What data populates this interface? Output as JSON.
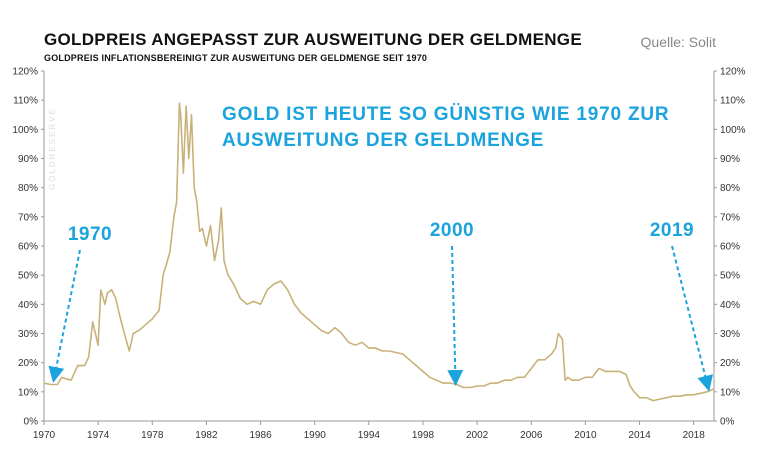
{
  "header": {
    "title": "GOLDPREIS ANGEPASST ZUR AUSWEITUNG DER GELDMENGE",
    "subtitle": "GOLDPREIS INFLATIONSBEREINIGT ZUR AUSWEITUNG DER GELDMENGE SEIT 1970",
    "source": "Quelle: Solit"
  },
  "headline": {
    "line1": "GOLD IST HEUTE SO GÜNSTIG WIE 1970 ZUR",
    "line2": "AUSWEITUNG DER GELDMENGE"
  },
  "colors": {
    "series": "#c8b27a",
    "accent": "#1aa3dd",
    "axis": "#999999"
  },
  "chart_data": {
    "type": "line",
    "title": "GOLDPREIS ANGEPASST ZUR AUSWEITUNG DER GELDMENGE",
    "subtitle": "GOLDPREIS INFLATIONSBEREINIGT ZUR AUSWEITUNG DER GELDMENGE SEIT 1970",
    "xlim": [
      1970,
      2019.5
    ],
    "ylim": [
      0,
      120
    ],
    "y_unit": "%",
    "y_axes": "left and right",
    "grid": false,
    "x_ticks": [
      "1970",
      "1974",
      "1978",
      "1982",
      "1986",
      "1990",
      "1994",
      "1998",
      "2002",
      "2006",
      "2010",
      "2014",
      "2018"
    ],
    "y_ticks": [
      "0%",
      "10%",
      "20%",
      "30%",
      "40%",
      "50%",
      "60%",
      "70%",
      "80%",
      "90%",
      "100%",
      "110%",
      "120%"
    ],
    "x": [
      1970.0,
      1970.5,
      1971.0,
      1971.3,
      1971.6,
      1972.0,
      1972.5,
      1973.0,
      1973.3,
      1973.6,
      1974.0,
      1974.2,
      1974.5,
      1974.7,
      1975.0,
      1975.3,
      1975.6,
      1976.0,
      1976.3,
      1976.6,
      1977.0,
      1977.5,
      1978.0,
      1978.5,
      1978.8,
      1979.0,
      1979.3,
      1979.6,
      1979.8,
      1980.0,
      1980.1,
      1980.3,
      1980.5,
      1980.7,
      1980.9,
      1981.1,
      1981.3,
      1981.5,
      1981.7,
      1982.0,
      1982.3,
      1982.6,
      1982.9,
      1983.1,
      1983.3,
      1983.6,
      1984.0,
      1984.5,
      1985.0,
      1985.5,
      1986.0,
      1986.5,
      1987.0,
      1987.5,
      1988.0,
      1988.5,
      1989.0,
      1989.5,
      1990.0,
      1990.5,
      1991.0,
      1991.5,
      1992.0,
      1992.5,
      1993.0,
      1993.5,
      1994.0,
      1994.5,
      1995.0,
      1995.5,
      1996.0,
      1996.5,
      1997.0,
      1997.5,
      1998.0,
      1998.5,
      1999.0,
      1999.5,
      2000.0,
      2000.5,
      2001.0,
      2001.5,
      2002.0,
      2002.5,
      2003.0,
      2003.5,
      2004.0,
      2004.5,
      2005.0,
      2005.5,
      2006.0,
      2006.5,
      2007.0,
      2007.5,
      2007.8,
      2008.0,
      2008.3,
      2008.5,
      2008.7,
      2009.0,
      2009.5,
      2010.0,
      2010.5,
      2011.0,
      2011.5,
      2012.0,
      2012.5,
      2013.0,
      2013.3,
      2013.6,
      2014.0,
      2014.5,
      2015.0,
      2015.5,
      2016.0,
      2016.5,
      2017.0,
      2017.5,
      2018.0,
      2018.5,
      2019.0,
      2019.5
    ],
    "values": [
      13,
      12.5,
      12.5,
      15,
      14.5,
      14,
      19,
      19,
      22,
      34,
      26,
      45,
      40,
      44,
      45,
      42,
      36,
      29,
      24,
      30,
      31,
      33,
      35,
      38,
      50,
      53,
      58,
      70,
      75,
      109,
      105,
      85,
      108,
      90,
      105,
      80,
      75,
      65,
      66,
      60,
      67,
      55,
      62,
      73,
      55,
      50,
      47,
      42,
      40,
      41,
      40,
      45,
      47,
      48,
      45,
      40,
      37,
      35,
      33,
      31,
      30,
      32,
      30,
      27,
      26,
      27,
      25,
      25,
      24,
      24,
      23.5,
      23,
      21,
      19,
      17,
      15,
      14,
      13,
      13,
      12.5,
      11.5,
      11.5,
      12,
      12,
      13,
      13,
      14,
      14,
      15,
      15,
      18,
      21,
      21,
      23,
      25,
      30,
      28,
      14,
      15,
      14,
      14,
      15,
      15,
      18,
      17,
      17,
      17,
      16,
      12,
      10,
      8,
      8,
      7,
      7.5,
      8,
      8.5,
      8.5,
      9,
      9,
      9.5,
      10,
      11
    ]
  },
  "annotations": [
    {
      "label": "1970",
      "year": 1970.2,
      "value": 13
    },
    {
      "label": "2000",
      "year": 2000.4,
      "value": 12
    },
    {
      "label": "2019",
      "year": 2019.0,
      "value": 10
    }
  ],
  "watermark_text": "GOLDRESERVE"
}
